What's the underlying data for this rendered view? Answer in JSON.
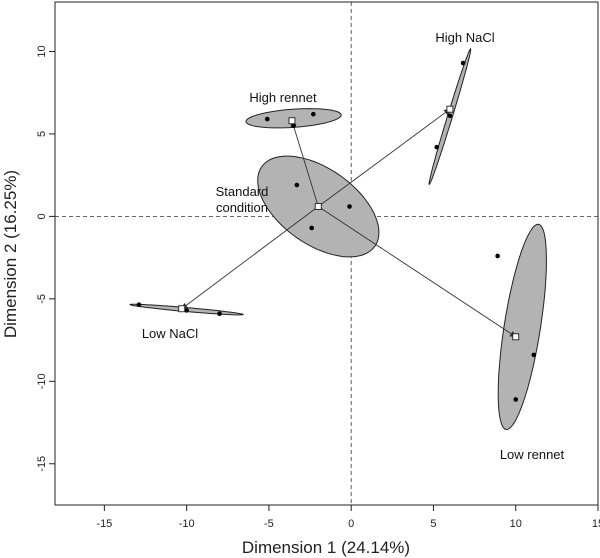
{
  "chart_data": {
    "type": "scatter",
    "title": "",
    "xlabel": "Dimension 1 (24.14%)",
    "ylabel": "Dimension 2 (16.25%)",
    "xlim": [
      -18,
      15
    ],
    "ylim": [
      -17.5,
      13
    ],
    "xticks": [
      -15,
      -10,
      -5,
      0,
      5,
      10,
      15
    ],
    "yticks": [
      -15,
      -10,
      -5,
      0,
      5,
      10
    ],
    "reference_lines": {
      "x": 0,
      "y": 0,
      "style": "dashed"
    },
    "center": {
      "name": "Standard condition",
      "x": -2.0,
      "y": 0.6
    },
    "groups": [
      {
        "name": "Standard condition",
        "label_lines": [
          "Standard",
          "condition"
        ],
        "centroid": {
          "x": -2.0,
          "y": 0.6
        },
        "points": [
          [
            -3.3,
            1.9
          ],
          [
            -2.4,
            -0.7
          ],
          [
            -0.1,
            0.6
          ]
        ],
        "ellipse": {
          "cx": -2.0,
          "cy": 0.6,
          "rx": 4.2,
          "ry": 2.3,
          "angle": -35
        }
      },
      {
        "name": "High rennet",
        "label_lines": [
          "High rennet"
        ],
        "centroid": {
          "x": -3.6,
          "y": 5.8
        },
        "points": [
          [
            -5.1,
            5.9
          ],
          [
            -2.3,
            6.2
          ],
          [
            -3.5,
            5.5
          ]
        ],
        "ellipse": {
          "cx": -3.5,
          "cy": 5.95,
          "rx": 2.9,
          "ry": 0.55,
          "angle": 4
        }
      },
      {
        "name": "High NaCl",
        "label_lines": [
          "High NaCl"
        ],
        "centroid": {
          "x": 6.0,
          "y": 6.5
        },
        "points": [
          [
            6.8,
            9.3
          ],
          [
            6.0,
            6.1
          ],
          [
            5.2,
            4.2
          ]
        ],
        "ellipse": {
          "cx": 6.0,
          "cy": 6.05,
          "rx": 4.3,
          "ry": 0.15,
          "angle": 73
        }
      },
      {
        "name": "Low NaCl",
        "label_lines": [
          "Low NaCl"
        ],
        "centroid": {
          "x": -10.3,
          "y": -5.6
        },
        "points": [
          [
            -12.9,
            -5.35
          ],
          [
            -10.0,
            -5.7
          ],
          [
            -8.0,
            -5.9
          ]
        ],
        "ellipse": {
          "cx": -10.0,
          "cy": -5.65,
          "rx": 3.45,
          "ry": 0.12,
          "angle": -5
        }
      },
      {
        "name": "Low rennet",
        "label_lines": [
          "Low rennet"
        ],
        "centroid": {
          "x": 10.0,
          "y": -7.3
        },
        "points": [
          [
            8.9,
            -2.4
          ],
          [
            11.1,
            -8.4
          ],
          [
            10.0,
            -11.1
          ]
        ],
        "ellipse": {
          "cx": 10.4,
          "cy": -6.7,
          "rx": 6.3,
          "ry": 1.1,
          "angle": 81
        }
      }
    ]
  }
}
